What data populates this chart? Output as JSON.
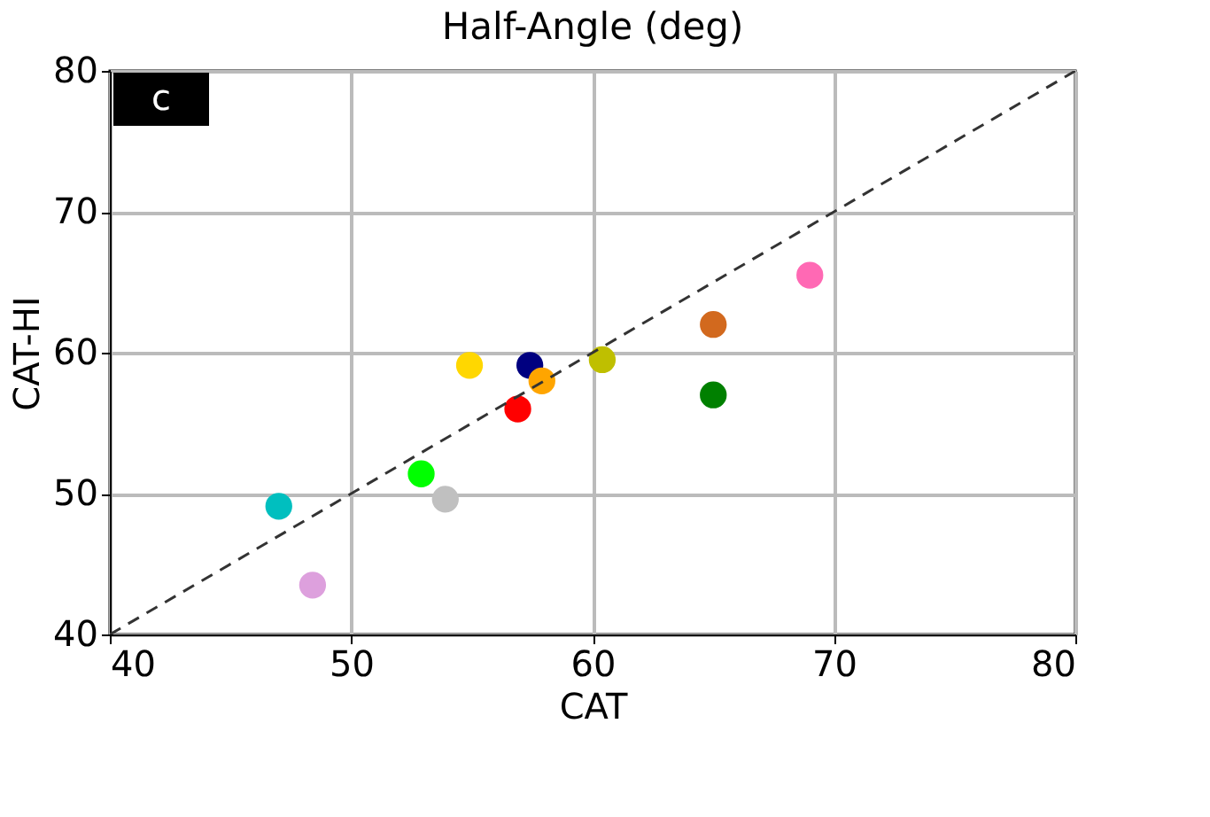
{
  "chart_data": {
    "type": "scatter",
    "title": "Half-Angle (deg)",
    "xlabel": "CAT",
    "ylabel": "CAT-HI",
    "xlim": [
      40,
      80
    ],
    "ylim": [
      40,
      80
    ],
    "xticks": [
      40,
      50,
      60,
      70,
      80
    ],
    "yticks": [
      40,
      50,
      60,
      70,
      80
    ],
    "grid": true,
    "annotations": [
      "c"
    ],
    "series": [
      {
        "marker": "circle",
        "x": [
          47.0,
          48.4,
          52.9,
          53.9,
          54.9,
          56.9,
          57.4,
          57.9,
          60.4,
          65.0,
          65.0,
          69.0
        ],
        "values": [
          49.1,
          43.5,
          51.4,
          49.6,
          59.1,
          56.0,
          59.1,
          58.0,
          59.5,
          62.0,
          57.0,
          65.5
        ],
        "colors": [
          "#00bfbf",
          "#dda0dd",
          "#00ff00",
          "#c0c0c0",
          "#ffd700",
          "#ff0000",
          "#000080",
          "#ffa500",
          "#bfbf00",
          "#d2691e",
          "#008000",
          "#ff69b4"
        ]
      },
      {
        "type": "line",
        "x": [
          40,
          80
        ],
        "values": [
          40,
          80
        ],
        "color": "#333333",
        "line_style": "dashed"
      }
    ]
  }
}
